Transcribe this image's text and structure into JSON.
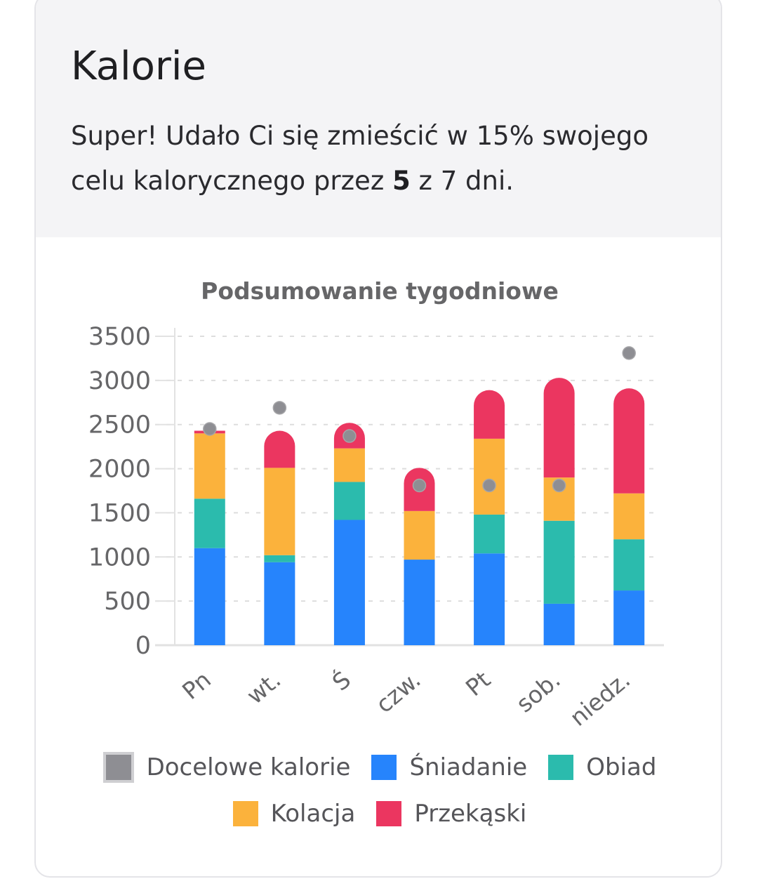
{
  "card": {
    "title": "Kalorie",
    "summary_before": "Super! Udało Ci się zmieścić w 15% swojego celu kalorycznego przez ",
    "summary_bold": "5",
    "summary_after": " z 7 dni."
  },
  "chart_data": {
    "type": "bar",
    "stacked": true,
    "title": "Podsumowanie tygodniowe",
    "xlabel": "",
    "ylabel": "",
    "ylim": [
      0,
      3500
    ],
    "yticks": [
      "3500",
      "3000",
      "2500",
      "2000",
      "1500",
      "1000",
      "500",
      "0"
    ],
    "grid": true,
    "legend_position": "bottom",
    "categories": [
      "Pn",
      "wt.",
      "Ś",
      "czw.",
      "Pt",
      "sob.",
      "niedz."
    ],
    "series": [
      {
        "name": "Śniadanie",
        "color": "#2684fc",
        "values": [
          1100,
          940,
          1420,
          970,
          1040,
          470,
          620
        ]
      },
      {
        "name": "Obiad",
        "color": "#2bbbad",
        "values": [
          560,
          80,
          430,
          0,
          440,
          940,
          580
        ]
      },
      {
        "name": "Kolacja",
        "color": "#fbb23c",
        "values": [
          740,
          990,
          380,
          550,
          860,
          490,
          520
        ]
      },
      {
        "name": "Przekąski",
        "color": "#eb3660",
        "values": [
          30,
          420,
          290,
          490,
          550,
          1130,
          1190
        ]
      }
    ],
    "target": {
      "name": "Docelowe kalorie",
      "color": "#8e8e93",
      "values": [
        2450,
        2690,
        2370,
        1810,
        1810,
        1810,
        3310
      ]
    },
    "legend": [
      "Docelowe kalorie",
      "Śniadanie",
      "Obiad",
      "Kolacja",
      "Przekąski"
    ]
  }
}
